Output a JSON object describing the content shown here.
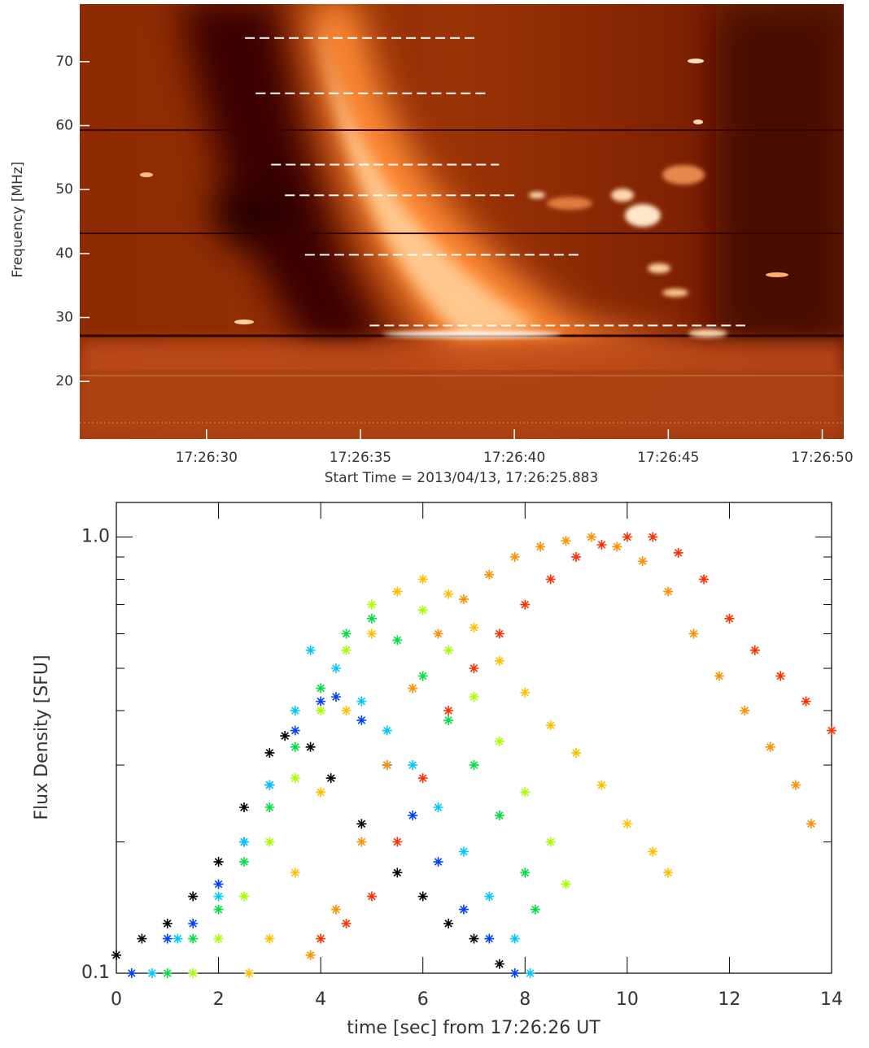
{
  "chart_data": [
    {
      "type": "spectrogram",
      "ylabel": "Frequency [MHz]",
      "xlabel": "Start Time = 2013/04/13, 17:26:25.883",
      "xlim": [
        25.883,
        50.7
      ],
      "xticks": [
        {
          "value": 30,
          "label": "17:26:30"
        },
        {
          "value": 35,
          "label": "17:26:35"
        },
        {
          "value": 40,
          "label": "17:26:40"
        },
        {
          "value": 45,
          "label": "17:26:45"
        },
        {
          "value": 50,
          "label": "17:26:50"
        }
      ],
      "ylim": [
        11,
        79
      ],
      "yticks": [
        20,
        30,
        40,
        50,
        60,
        70
      ],
      "dashed_lines": [
        {
          "y": 73.7,
          "x": [
            31.25,
            38.8
          ]
        },
        {
          "y": 65.05,
          "x": [
            31.6,
            39.2
          ]
        },
        {
          "y": 53.9,
          "x": [
            32.1,
            39.5
          ]
        },
        {
          "y": 49.1,
          "x": [
            32.55,
            40.05
          ]
        },
        {
          "y": 39.8,
          "x": [
            33.2,
            42.1
          ]
        },
        {
          "y": 28.75,
          "x": [
            35.3,
            47.5
          ]
        }
      ],
      "dash_color": "#ffffff"
    },
    {
      "type": "scatter",
      "ylabel": "Flux Density [SFU]",
      "xlabel": "time [sec] from 17:26:26 UT",
      "xlim": [
        0,
        14
      ],
      "xticks": [
        0,
        2,
        4,
        6,
        8,
        10,
        12,
        14
      ],
      "ylim": [
        0.1,
        1.2
      ],
      "ylog": true,
      "yticks": [
        {
          "value": 0.1,
          "label": "0.1"
        },
        {
          "value": 1,
          "label": "1.0"
        }
      ],
      "yminor": [
        0.2,
        0.3,
        0.4,
        0.5,
        0.6,
        0.7,
        0.8,
        0.9
      ],
      "series": [
        {
          "color": "#000000",
          "x": [
            0,
            0.5,
            1,
            1.5,
            2,
            2.5,
            3,
            3.3,
            3.8,
            4.2,
            4.8,
            5.5,
            6,
            6.5,
            7,
            7.5
          ],
          "values": [
            0.11,
            0.12,
            0.13,
            0.15,
            0.18,
            0.24,
            0.32,
            0.35,
            0.33,
            0.28,
            0.22,
            0.17,
            0.15,
            0.13,
            0.12,
            0.105
          ]
        },
        {
          "color": "#0040ff",
          "x": [
            0.3,
            1,
            1.5,
            2,
            2.5,
            3,
            3.5,
            4,
            4.3,
            4.8,
            5.3,
            5.8,
            6.3,
            6.8,
            7.3,
            7.8
          ],
          "values": [
            0.1,
            0.12,
            0.13,
            0.16,
            0.2,
            0.27,
            0.36,
            0.42,
            0.43,
            0.38,
            0.3,
            0.23,
            0.18,
            0.14,
            0.12,
            0.1
          ]
        },
        {
          "color": "#00c8ff",
          "x": [
            0.7,
            1.2,
            2,
            2.5,
            3,
            3.5,
            3.8,
            4.3,
            4.8,
            5.3,
            5.8,
            6.3,
            6.8,
            7.3,
            7.8,
            8.1
          ],
          "values": [
            0.1,
            0.12,
            0.15,
            0.2,
            0.27,
            0.4,
            0.55,
            0.5,
            0.42,
            0.36,
            0.3,
            0.24,
            0.19,
            0.15,
            0.12,
            0.1
          ]
        },
        {
          "color": "#00e040",
          "x": [
            1,
            1.5,
            2,
            2.5,
            3,
            3.5,
            4,
            4.5,
            5,
            5.5,
            6,
            6.5,
            7,
            7.5,
            8,
            8.2
          ],
          "values": [
            0.1,
            0.12,
            0.14,
            0.18,
            0.24,
            0.33,
            0.45,
            0.6,
            0.65,
            0.58,
            0.48,
            0.38,
            0.3,
            0.23,
            0.17,
            0.14
          ]
        },
        {
          "color": "#a8ff00",
          "x": [
            1.5,
            2,
            2.5,
            3,
            3.5,
            4,
            4.5,
            5,
            5.5,
            6,
            6.5,
            7,
            7.5,
            8,
            8.5,
            8.8
          ],
          "values": [
            0.1,
            0.12,
            0.15,
            0.2,
            0.28,
            0.4,
            0.55,
            0.7,
            0.75,
            0.68,
            0.55,
            0.43,
            0.34,
            0.26,
            0.2,
            0.16
          ]
        },
        {
          "color": "#ffc000",
          "x": [
            2.6,
            3,
            3.5,
            4,
            4.5,
            5,
            5.5,
            6,
            6.5,
            7,
            7.5,
            8,
            8.5,
            9,
            9.5,
            10,
            10.5,
            10.8
          ],
          "values": [
            0.1,
            0.12,
            0.17,
            0.26,
            0.4,
            0.6,
            0.75,
            0.8,
            0.74,
            0.62,
            0.52,
            0.44,
            0.37,
            0.32,
            0.27,
            0.22,
            0.19,
            0.17
          ]
        },
        {
          "color": "#ff9000",
          "x": [
            3.8,
            4.3,
            4.8,
            5.3,
            5.8,
            6.3,
            6.8,
            7.3,
            7.8,
            8.3,
            8.8,
            9.3,
            9.8,
            10.3,
            10.8,
            11.3,
            11.8,
            12.3,
            12.8,
            13.3,
            13.6
          ],
          "values": [
            0.11,
            0.14,
            0.2,
            0.3,
            0.45,
            0.6,
            0.72,
            0.82,
            0.9,
            0.95,
            0.98,
            1.0,
            0.95,
            0.88,
            0.75,
            0.6,
            0.48,
            0.4,
            0.33,
            0.27,
            0.22
          ]
        },
        {
          "color": "#ff3000",
          "x": [
            4,
            4.5,
            5,
            5.5,
            6,
            6.5,
            7,
            7.5,
            8,
            8.5,
            9,
            9.5,
            10,
            10.5,
            11,
            11.5,
            12,
            12.5,
            13,
            13.5,
            14
          ],
          "values": [
            0.12,
            0.13,
            0.15,
            0.2,
            0.28,
            0.4,
            0.5,
            0.6,
            0.7,
            0.8,
            0.9,
            0.96,
            1.0,
            1.0,
            0.92,
            0.8,
            0.65,
            0.55,
            0.48,
            0.42,
            0.36
          ]
        }
      ]
    }
  ]
}
